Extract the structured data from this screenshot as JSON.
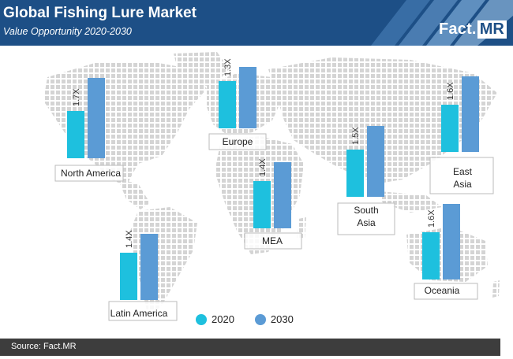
{
  "header": {
    "title": "Global Fishing Lure Market",
    "subtitle": "Value Opportunity 2020-2030",
    "logo_main": "Fact.",
    "logo_accent": "MR"
  },
  "colors": {
    "header_bg": "#1d4f86",
    "bar_2020": "#1ec0de",
    "bar_2030": "#5b9bd5",
    "map_dots": "#d6d6d6",
    "footer_bg": "#3d3d3d"
  },
  "chart_data": {
    "type": "bar",
    "title": "Global Fishing Lure Market",
    "subtitle": "Value Opportunity 2020-2030",
    "series": [
      {
        "name": "2020"
      },
      {
        "name": "2030"
      }
    ],
    "regions": [
      {
        "name_lines": [
          "North America"
        ],
        "multiplier": "1.7X",
        "value_2020": 1.0,
        "value_2030": 1.7
      },
      {
        "name_lines": [
          "Europe"
        ],
        "multiplier": "1.3X",
        "value_2020": 1.0,
        "value_2030": 1.3
      },
      {
        "name_lines": [
          "East",
          "Asia"
        ],
        "multiplier": "1.6X",
        "value_2020": 1.0,
        "value_2030": 1.6
      },
      {
        "name_lines": [
          "South",
          "Asia"
        ],
        "multiplier": "1.5X",
        "value_2020": 1.0,
        "value_2030": 1.5
      },
      {
        "name_lines": [
          "MEA"
        ],
        "multiplier": "1.4X",
        "value_2020": 1.0,
        "value_2030": 1.4
      },
      {
        "name_lines": [
          "Latin America"
        ],
        "multiplier": "1.4X",
        "value_2020": 1.0,
        "value_2030": 1.4
      },
      {
        "name_lines": [
          "Oceania"
        ],
        "multiplier": "1.6X",
        "value_2020": 1.0,
        "value_2030": 1.6
      }
    ]
  },
  "legend": {
    "label_2020": "2020",
    "label_2030": "2030"
  },
  "footer": {
    "source": "Source: Fact.MR"
  }
}
